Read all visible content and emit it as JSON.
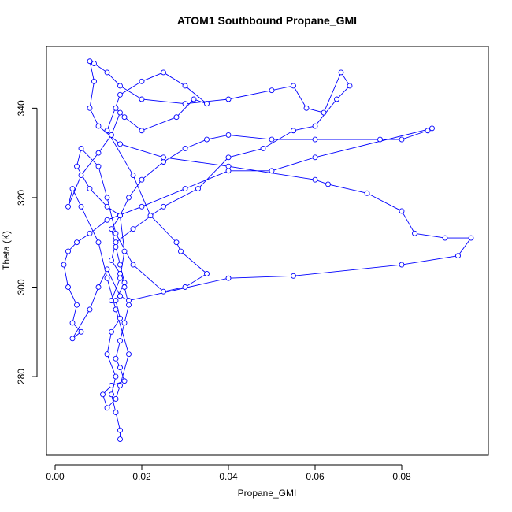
{
  "chart_data": {
    "type": "line",
    "markers": "circle",
    "title": "ATOM1 Southbound Propane_GMI",
    "x_label": "Propane_GMI",
    "y_label": "Theta (K)",
    "xlim": [
      -0.002,
      0.1
    ],
    "ylim": [
      262.4,
      353.8
    ],
    "xticks": [
      {
        "value": 0,
        "label": "0.00"
      },
      {
        "value": 0.02,
        "label": "0.02"
      },
      {
        "value": 0.04,
        "label": "0.04"
      },
      {
        "value": 0.06,
        "label": "0.06"
      },
      {
        "value": 0.08,
        "label": "0.08"
      }
    ],
    "yticks": [
      280,
      300,
      320,
      340
    ],
    "x": [
      0.015,
      0.015,
      0.014,
      0.013,
      0.014,
      0.012,
      0.013,
      0.015,
      0.014,
      0.016,
      0.015,
      0.014,
      0.013,
      0.015,
      0.017,
      0.02,
      0.025,
      0.03,
      0.035,
      0.04,
      0.05,
      0.06,
      0.075,
      0.08,
      0.086,
      0.087,
      0.06,
      0.05,
      0.04,
      0.03,
      0.02,
      0.012,
      0.008,
      0.005,
      0.003,
      0.002,
      0.003,
      0.005,
      0.004,
      0.006,
      0.004,
      0.008,
      0.01,
      0.012,
      0.015,
      0.017,
      0.04,
      0.055,
      0.08,
      0.093,
      0.096,
      0.09,
      0.083,
      0.08,
      0.072,
      0.063,
      0.06,
      0.04,
      0.025,
      0.015,
      0.01,
      0.008,
      0.009,
      0.008,
      0.009,
      0.012,
      0.015,
      0.02,
      0.03,
      0.04,
      0.05,
      0.055,
      0.058,
      0.062,
      0.066,
      0.068,
      0.065,
      0.06,
      0.055,
      0.048,
      0.04,
      0.033,
      0.025,
      0.018,
      0.014,
      0.013,
      0.015,
      0.016,
      0.017,
      0.016,
      0.015,
      0.014,
      0.015,
      0.016,
      0.013,
      0.011,
      0.012,
      0.014,
      0.015,
      0.017,
      0.014,
      0.012,
      0.01,
      0.006,
      0.004,
      0.003,
      0.006,
      0.01,
      0.013,
      0.015,
      0.014,
      0.016,
      0.02,
      0.028,
      0.032,
      0.035,
      0.03,
      0.025,
      0.02,
      0.015,
      0.012,
      0.018,
      0.022,
      0.028,
      0.029,
      0.035,
      0.03,
      0.025,
      0.018,
      0.014,
      0.012,
      0.01,
      0.006,
      0.005,
      0.008,
      0.012,
      0.015,
      0.016,
      0.015,
      0.013
    ],
    "series": [
      {
        "color": "#0000ff",
        "values": [
          266,
          268,
          272,
          276,
          280,
          285,
          290,
          293,
          297,
          301,
          305,
          309,
          313,
          316,
          320,
          324,
          328,
          331,
          333,
          334,
          333,
          333,
          333,
          333,
          335,
          335.5,
          329,
          326,
          326,
          322,
          318,
          315,
          312,
          310,
          308,
          305,
          300,
          296,
          292,
          290,
          288.5,
          295,
          300,
          304,
          298,
          297,
          302,
          302.5,
          305,
          307,
          311,
          311,
          312,
          317,
          321,
          323,
          324,
          327,
          329,
          332,
          336,
          340,
          346,
          350.5,
          350,
          348,
          345,
          342,
          341,
          342,
          344,
          345,
          340,
          339,
          348,
          345,
          342,
          336,
          335,
          331,
          329,
          322,
          318,
          313,
          310,
          306,
          303,
          300,
          296,
          292,
          288,
          284,
          282,
          279,
          278,
          276,
          273,
          275,
          278,
          285,
          295,
          302,
          310,
          318,
          322,
          318,
          325,
          330,
          334,
          339,
          340,
          338,
          335,
          338,
          342,
          341,
          345,
          348,
          346,
          343,
          335,
          325,
          316,
          310,
          308,
          303,
          300,
          299,
          305,
          312,
          320,
          327,
          331,
          327,
          322,
          318,
          316,
          308,
          302,
          297
        ]
      }
    ]
  }
}
